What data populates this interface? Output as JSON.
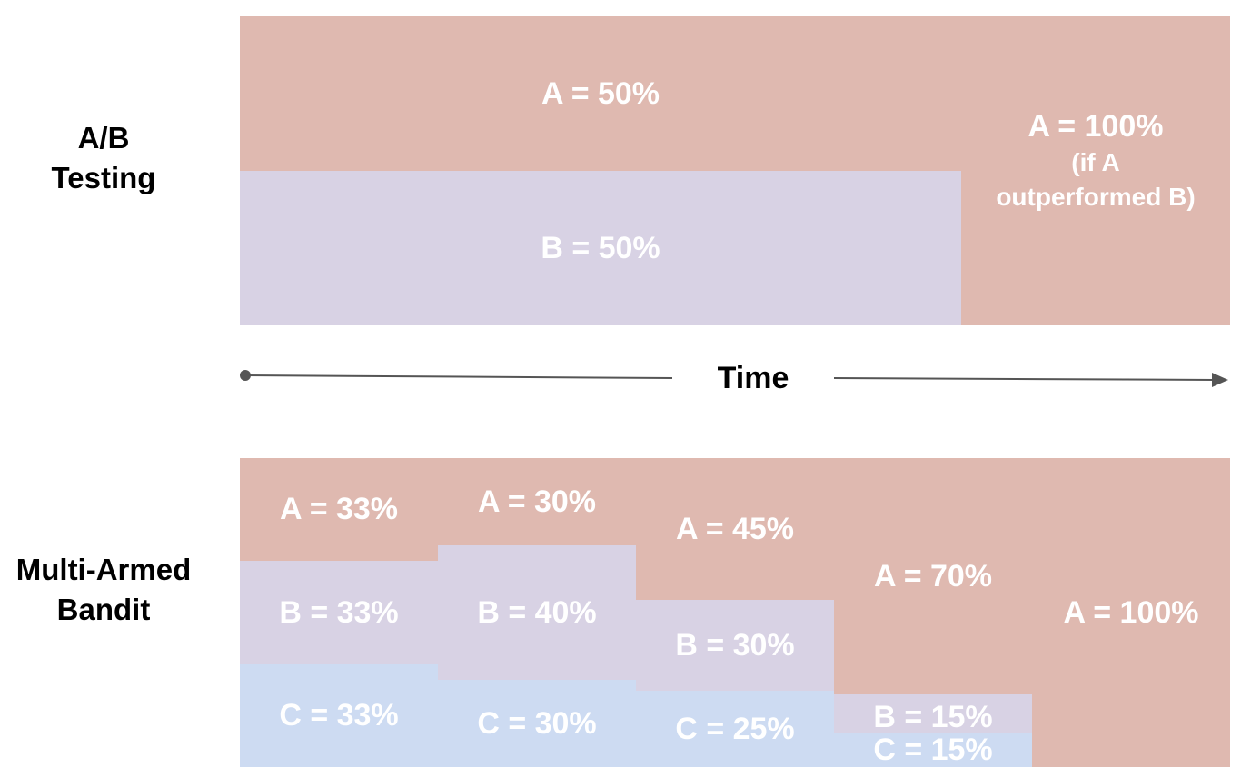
{
  "ab_testing": {
    "label_line1": "A/B",
    "label_line2": "Testing",
    "segment_a": "A = 50%",
    "segment_b": "B = 50%",
    "final_main": "A = 100%",
    "final_note_line1": "(if A",
    "final_note_line2": "outperformed B)"
  },
  "timeline": {
    "label": "Time"
  },
  "multi_armed_bandit": {
    "label_line1": "Multi-Armed",
    "label_line2": "Bandit",
    "steps": [
      {
        "a": "A = 33%",
        "b": "B = 33%",
        "c": "C = 33%"
      },
      {
        "a": "A = 30%",
        "b": "B = 40%",
        "c": "C = 30%"
      },
      {
        "a": "A = 45%",
        "b": "B = 30%",
        "c": "C = 25%"
      },
      {
        "a": "A = 70%",
        "b": "B = 15%",
        "c": "C = 15%"
      },
      {
        "a": "A = 100%"
      }
    ]
  },
  "colors": {
    "variant_a": "#dfb9b0",
    "variant_b": "#d8d2e4",
    "variant_c": "#cddbf2",
    "text_on_blocks": "#ffffff",
    "arrow": "#555555"
  }
}
